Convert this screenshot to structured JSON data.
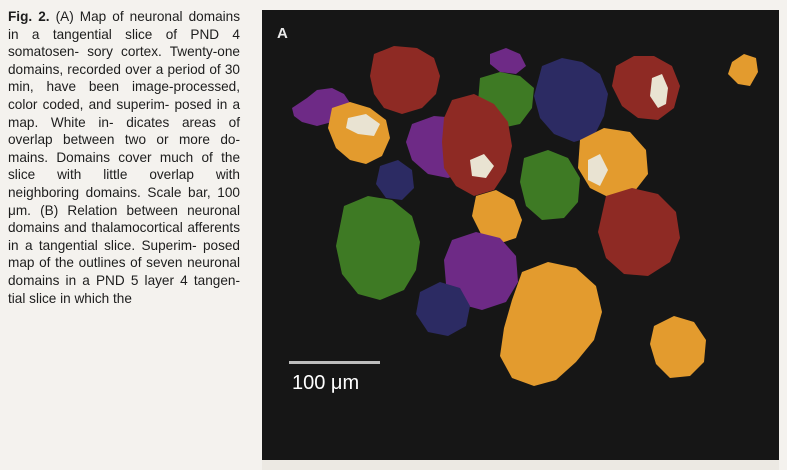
{
  "caption": {
    "fig_label": "Fig. 2.",
    "lines": [
      "(A) Map of neuronal",
      "domains in a tangential",
      "slice of PND 4 somatosen-",
      "sory cortex. Twenty-one",
      "domains, recorded over a",
      "period of 30 min, have",
      "been image-processed,",
      "color coded, and superim-",
      "posed in a map. White in-",
      "dicates areas of overlap",
      "between two or more do-",
      "mains. Domains cover",
      "much of the slice with little",
      "overlap with neighboring",
      "domains. Scale bar, 100",
      "μm. (B) Relation between",
      "neuronal domains and",
      "thalamocortical afferents in",
      "a tangential slice. Superim-",
      "posed map of the outlines",
      "of seven neuronal domains",
      "in a PND 5 layer 4 tangen-",
      "tial slice in which the"
    ]
  },
  "figure": {
    "panel_label": "A",
    "scale_label": "100 μm",
    "colors": {
      "background": "#161616",
      "red": "#8e2a24",
      "purple": "#6e2a86",
      "orange": "#e39b2e",
      "green": "#3e7a24",
      "navy": "#2c2b63",
      "overlap_white": "#e9e3d2"
    }
  }
}
